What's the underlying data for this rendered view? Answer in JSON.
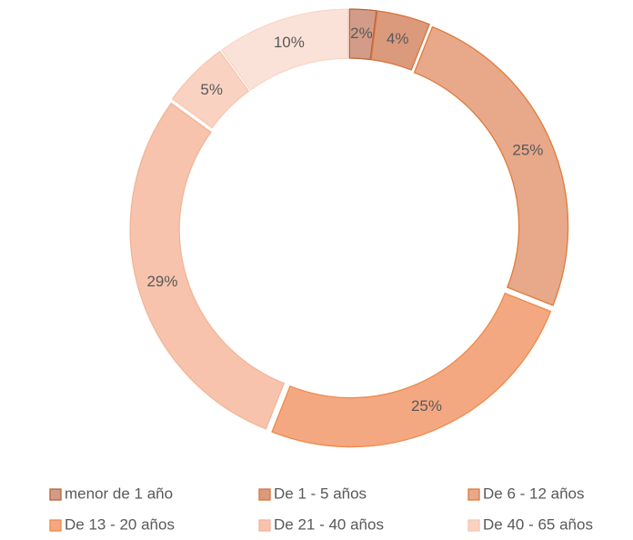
{
  "chart_data": {
    "type": "pie",
    "donut": true,
    "categories": [
      "menor de 1 año",
      "De 1 - 5 años",
      "De 6 - 12 años",
      "De 13 - 20 años",
      "De 21 - 40 años",
      "De 40 - 65 años",
      null
    ],
    "values": [
      2,
      4,
      25,
      25,
      29,
      5,
      10
    ],
    "value_labels": [
      "2%",
      "4%",
      "25%",
      "25%",
      "29%",
      "5%",
      "10%"
    ],
    "colors": [
      "#d29c88",
      "#dc9a7c",
      "#e8a88a",
      "#f4a882",
      "#f7c3ad",
      "#f9d2c2",
      "#fbe2d8"
    ],
    "stroke_colors": [
      "#b8633a",
      "#d9743a",
      "#e07b39",
      "#ee8a4a",
      "#f1b596",
      "#f6c7b2",
      "#f8d6c8"
    ],
    "legend": "bottom"
  }
}
